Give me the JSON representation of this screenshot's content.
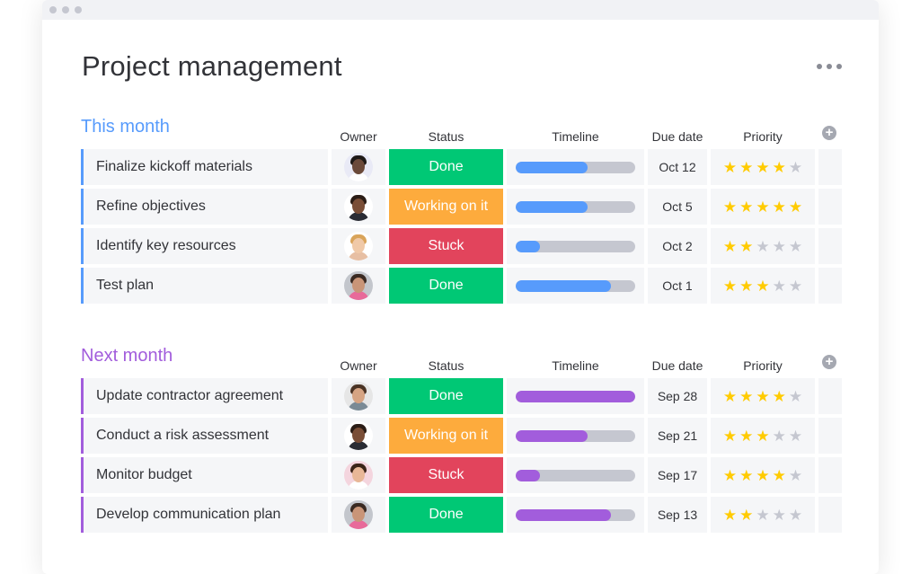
{
  "window": {
    "title": "Project management"
  },
  "colors": {
    "this_month": "#579bfc",
    "next_month": "#a25ddc",
    "done": "#00c875",
    "working": "#fdab3d",
    "stuck": "#e2445c",
    "star_on": "#ffcb00",
    "star_off": "#c5c7d0"
  },
  "columns": {
    "owner": "Owner",
    "status": "Status",
    "timeline": "Timeline",
    "due": "Due date",
    "priority": "Priority"
  },
  "groups": [
    {
      "title": "This month",
      "rows": [
        {
          "name": "Finalize kickoff materials",
          "status": "Done",
          "status_color": "done",
          "timeline": 0.6,
          "due": "Oct 12",
          "priority": 4,
          "avatar": {
            "skin": "#6b4a3a",
            "hair": "#1f1a17",
            "shirt": "#ffffff",
            "bg": "#e9eaf6"
          }
        },
        {
          "name": "Refine objectives",
          "status": "Working on it",
          "status_color": "working",
          "timeline": 0.6,
          "due": "Oct 5",
          "priority": 5,
          "avatar": {
            "skin": "#7a4e37",
            "hair": "#2b1d16",
            "shirt": "#2a2c34",
            "bg": "#ffffff"
          }
        },
        {
          "name": "Identify key resources",
          "status": "Stuck",
          "status_color": "stuck",
          "timeline": 0.2,
          "due": "Oct 2",
          "priority": 2,
          "avatar": {
            "skin": "#f0c9a8",
            "hair": "#d9a45a",
            "shirt": "#e7bfa3",
            "bg": "#ffffff"
          }
        },
        {
          "name": "Test plan",
          "status": "Done",
          "status_color": "done",
          "timeline": 0.8,
          "due": "Oct 1",
          "priority": 3,
          "avatar": {
            "skin": "#c99578",
            "hair": "#3a2a22",
            "shirt": "#e86a9a",
            "bg": "#c3c6cc"
          }
        }
      ]
    },
    {
      "title": "Next month",
      "rows": [
        {
          "name": "Update contractor agreement",
          "status": "Done",
          "status_color": "done",
          "timeline": 1.0,
          "due": "Sep 28",
          "priority": 4,
          "avatar": {
            "skin": "#d6a483",
            "hair": "#4a3324",
            "shirt": "#7a8a95",
            "bg": "#e6e6e6"
          }
        },
        {
          "name": "Conduct a risk assessment",
          "status": "Working on it",
          "status_color": "working",
          "timeline": 0.6,
          "due": "Sep 21",
          "priority": 3,
          "avatar": {
            "skin": "#7a4e37",
            "hair": "#2b1d16",
            "shirt": "#2a2c34",
            "bg": "#ffffff"
          }
        },
        {
          "name": "Monitor budget",
          "status": "Stuck",
          "status_color": "stuck",
          "timeline": 0.2,
          "due": "Sep 17",
          "priority": 4,
          "avatar": {
            "skin": "#e8b797",
            "hair": "#3b2418",
            "shirt": "#ffffff",
            "bg": "#f4d5de"
          }
        },
        {
          "name": "Develop communication plan",
          "status": "Done",
          "status_color": "done",
          "timeline": 0.8,
          "due": "Sep 13",
          "priority": 2,
          "avatar": {
            "skin": "#c99578",
            "hair": "#3a2a22",
            "shirt": "#e86a9a",
            "bg": "#c3c6cc"
          }
        }
      ]
    }
  ]
}
